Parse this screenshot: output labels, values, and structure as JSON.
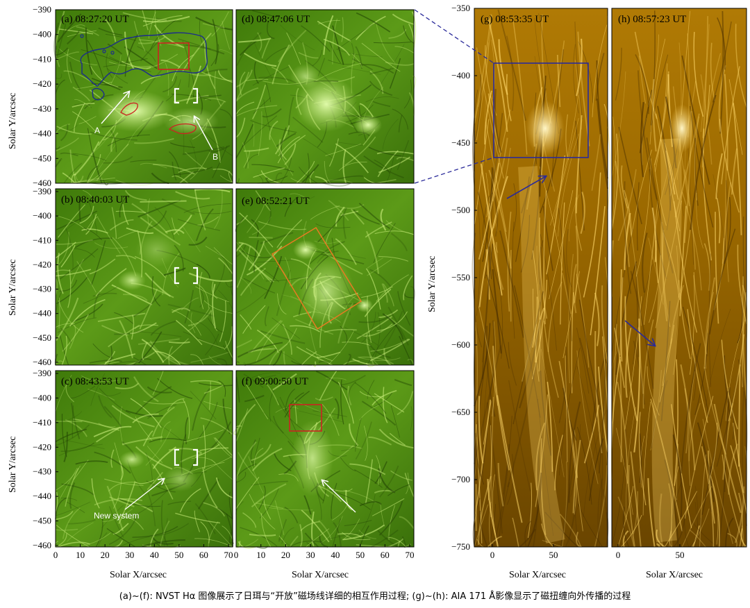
{
  "panels": {
    "a": {
      "label": "(a) 08:27:20 UT"
    },
    "b": {
      "label": "(b) 08:40:03 UT"
    },
    "c": {
      "label": "(c) 08:43:53 UT"
    },
    "d": {
      "label": "(d) 08:47:06 UT"
    },
    "e": {
      "label": "(e) 08:52:21 UT"
    },
    "f": {
      "label": "(f) 09:00:50 UT"
    },
    "g": {
      "label": "(g) 08:53:35 UT"
    },
    "h": {
      "label": "(h) 08:57:23 UT"
    }
  },
  "annotations": {
    "A": "A",
    "B": "B",
    "new_system": "New system"
  },
  "axes": {
    "ylabel": "Solar Y/arcsec",
    "xlabel": "Solar X/arcsec",
    "left_y_ticks": [
      "−390",
      "−400",
      "−410",
      "−420",
      "−430",
      "−440",
      "−450",
      "−460"
    ],
    "left_x_ticks": [
      "0",
      "10",
      "20",
      "30",
      "40",
      "50",
      "60",
      "70"
    ],
    "right_y_ticks": [
      "−350",
      "−400",
      "−450",
      "−500",
      "−550",
      "−600",
      "−650",
      "−700",
      "−750"
    ],
    "right_x_ticks": [
      "0",
      "50"
    ]
  },
  "colors": {
    "halpha_base": "#4f8a0f",
    "halpha_bright": "#c8ec7a",
    "aia_base": "#9a6600",
    "aia_bright": "#ffd86a",
    "box_red": "#cc2222",
    "box_orange": "#e87a22",
    "box_blue": "#2a2a9a",
    "contour_blue": "#1c2c8c"
  },
  "caption": "(a)~(f): NVST Hα 图像展示了日珥与“开放”磁场线详细的相互作用过程; (g)~(h): AIA 171 Å影像显示了磁扭缠向外传播的过程"
}
